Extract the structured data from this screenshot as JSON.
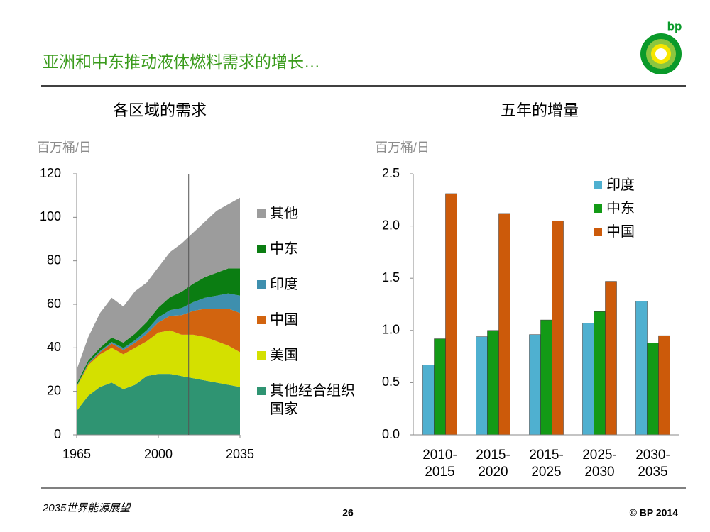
{
  "slide": {
    "title": "亚洲和中东推动液体燃料需求的增长…",
    "logo_text": "bp",
    "footer_left": "2035世界能源展望",
    "page_number": "26",
    "copyright": "© BP 2014"
  },
  "chart_data": [
    {
      "type": "area",
      "stacked": true,
      "title": "各区域的需求",
      "y_label": "百万桶/日",
      "x": [
        1965,
        1970,
        1975,
        1980,
        1985,
        1990,
        1995,
        2000,
        2005,
        2010,
        2015,
        2020,
        2025,
        2030,
        2035
      ],
      "xlim": [
        1965,
        2035
      ],
      "xticks": [
        1965,
        2000,
        2035
      ],
      "ylim": [
        0,
        120
      ],
      "yticks": [
        0,
        20,
        40,
        60,
        80,
        100,
        120
      ],
      "forecast_start": 2013,
      "series": [
        {
          "name": "其他经合组织国家",
          "color": "#2f9472",
          "values": [
            11,
            18,
            22,
            24,
            21,
            23,
            27,
            28,
            28,
            27,
            26,
            25,
            24,
            23,
            22
          ]
        },
        {
          "name": "美国",
          "color": "#d4e000",
          "values": [
            11,
            14,
            15,
            16,
            16,
            17,
            16,
            19,
            20,
            19,
            20,
            20,
            19,
            18,
            16
          ]
        },
        {
          "name": "中国",
          "color": "#d2640f",
          "values": [
            0.2,
            0.6,
            1,
            2,
            2,
            2.3,
            3.4,
            4.7,
            6.7,
            9,
            11,
            13,
            15,
            17,
            18
          ]
        },
        {
          "name": "印度",
          "color": "#3e8fae",
          "values": [
            0.3,
            0.4,
            0.5,
            0.7,
            0.9,
            1.2,
            1.6,
            2.3,
            2.6,
            3.3,
            4,
            5,
            6,
            7,
            8
          ]
        },
        {
          "name": "中东",
          "color": "#0b7d12",
          "values": [
            1,
            1.2,
            1.5,
            2,
            2.5,
            3,
            3.8,
            4.5,
            6,
            7.5,
            8.5,
            9.5,
            10.5,
            11.5,
            12.5
          ]
        },
        {
          "name": "其他",
          "color": "#9c9c9c",
          "values": [
            6.5,
            10.8,
            16,
            18.3,
            16.6,
            19.5,
            18.2,
            18.5,
            20.7,
            22.2,
            23.5,
            25.5,
            28.5,
            29.5,
            32.5
          ]
        }
      ]
    },
    {
      "type": "bar",
      "title": "五年的增量",
      "y_label": "百万桶/日",
      "categories": [
        "2010-2015",
        "2015-2020",
        "2015-2025",
        "2025-2030",
        "2030-2035"
      ],
      "ylim": [
        0,
        2.5
      ],
      "yticks": [
        {
          "value": 0,
          "label": "0.0"
        },
        0.5,
        {
          "value": 1,
          "label": "1.0"
        },
        1.5,
        {
          "value": 2,
          "label": "2.0"
        },
        2.5
      ],
      "series": [
        {
          "name": "印度",
          "color": "#4fb0d0",
          "values": [
            0.67,
            0.94,
            0.96,
            1.07,
            1.28
          ]
        },
        {
          "name": "中东",
          "color": "#139a16",
          "values": [
            0.92,
            1.0,
            1.1,
            1.18,
            0.88
          ]
        },
        {
          "name": "中国",
          "color": "#cc5a0a",
          "values": [
            2.31,
            2.12,
            2.05,
            1.47,
            0.95
          ]
        }
      ]
    }
  ]
}
